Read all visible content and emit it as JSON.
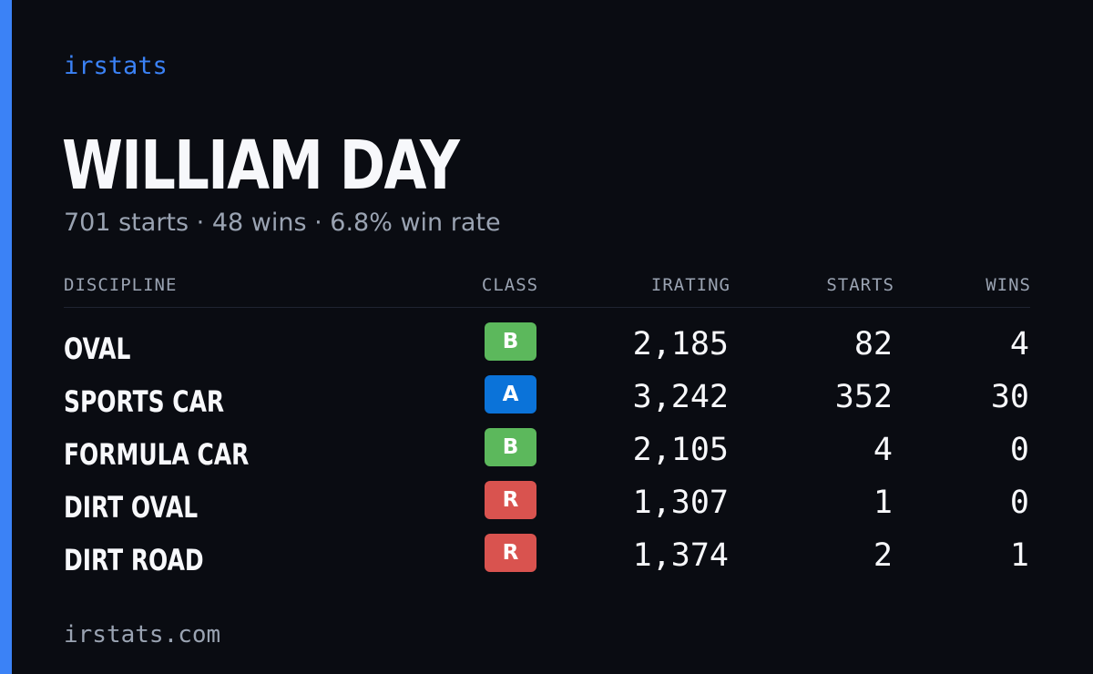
{
  "brand": "irstats",
  "driver": {
    "name": "WILLIAM DAY",
    "summary": "701 starts · 48 wins · 6.8% win rate"
  },
  "table": {
    "headers": {
      "discipline": "DISCIPLINE",
      "class": "CLASS",
      "irating": "IRATING",
      "starts": "STARTS",
      "wins": "WINS"
    },
    "rows": [
      {
        "discipline": "OVAL",
        "class": "B",
        "class_color": "#5cb85c",
        "irating": "2,185",
        "starts": "82",
        "wins": "4"
      },
      {
        "discipline": "SPORTS CAR",
        "class": "A",
        "class_color": "#0b73d9",
        "irating": "3,242",
        "starts": "352",
        "wins": "30"
      },
      {
        "discipline": "FORMULA CAR",
        "class": "B",
        "class_color": "#5cb85c",
        "irating": "2,105",
        "starts": "4",
        "wins": "0"
      },
      {
        "discipline": "DIRT OVAL",
        "class": "R",
        "class_color": "#d9534f",
        "irating": "1,307",
        "starts": "1",
        "wins": "0"
      },
      {
        "discipline": "DIRT ROAD",
        "class": "R",
        "class_color": "#d9534f",
        "irating": "1,374",
        "starts": "2",
        "wins": "1"
      }
    ]
  },
  "footer": "irstats.com",
  "colors": {
    "accent": "#3b82f6",
    "background": "#0a0c12"
  }
}
